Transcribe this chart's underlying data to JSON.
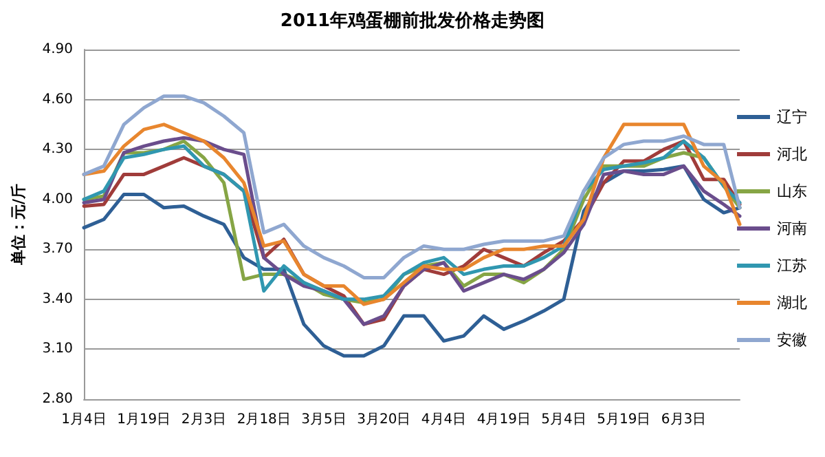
{
  "chart_data": {
    "type": "line",
    "title": "2011年鸡蛋棚前批发价格走势图",
    "ylabel": "单位：元/斤",
    "x": [
      "2011-01-04",
      "2011-01-09",
      "2011-01-14",
      "2011-01-19",
      "2011-01-24",
      "2011-01-29",
      "2011-02-03",
      "2011-02-08",
      "2011-02-13",
      "2011-02-18",
      "2011-02-23",
      "2011-02-28",
      "2011-03-05",
      "2011-03-10",
      "2011-03-15",
      "2011-03-20",
      "2011-03-25",
      "2011-03-30",
      "2011-04-04",
      "2011-04-09",
      "2011-04-14",
      "2011-04-19",
      "2011-04-24",
      "2011-04-29",
      "2011-05-04",
      "2011-05-09",
      "2011-05-14",
      "2011-05-19",
      "2011-05-24",
      "2011-05-29",
      "2011-06-03",
      "2011-06-08",
      "2011-06-13",
      "2011-06-17"
    ],
    "series": [
      {
        "name": "辽宁",
        "color": "#2e5f95",
        "values": [
          3.83,
          3.88,
          4.03,
          4.03,
          3.95,
          3.96,
          3.9,
          3.85,
          3.65,
          3.58,
          3.58,
          3.25,
          3.12,
          3.06,
          3.06,
          3.12,
          3.3,
          3.3,
          3.15,
          3.18,
          3.3,
          3.22,
          3.27,
          3.33,
          3.4,
          3.93,
          4.1,
          4.17,
          4.17,
          4.18,
          4.2,
          4.0,
          3.92,
          3.95
        ]
      },
      {
        "name": "河北",
        "color": "#a03c3a",
        "values": [
          3.96,
          3.97,
          4.15,
          4.15,
          4.2,
          4.25,
          4.2,
          4.15,
          4.05,
          3.65,
          3.76,
          3.55,
          3.48,
          3.42,
          3.25,
          3.28,
          3.48,
          3.58,
          3.55,
          3.6,
          3.7,
          3.65,
          3.6,
          3.68,
          3.75,
          3.88,
          4.1,
          4.23,
          4.23,
          4.3,
          4.35,
          4.12,
          4.12,
          3.97
        ]
      },
      {
        "name": "山东",
        "color": "#86a545",
        "values": [
          4.0,
          4.02,
          4.28,
          4.28,
          4.3,
          4.35,
          4.25,
          4.1,
          3.52,
          3.55,
          3.55,
          3.5,
          3.43,
          3.4,
          3.38,
          3.4,
          3.55,
          3.6,
          3.62,
          3.48,
          3.55,
          3.55,
          3.5,
          3.58,
          3.7,
          4.0,
          4.2,
          4.2,
          4.2,
          4.25,
          4.28,
          4.25,
          4.08,
          3.95
        ]
      },
      {
        "name": "河南",
        "color": "#6a4d8c",
        "values": [
          3.98,
          4.0,
          4.28,
          4.32,
          4.35,
          4.37,
          4.35,
          4.3,
          4.27,
          3.65,
          3.55,
          3.48,
          3.45,
          3.4,
          3.25,
          3.3,
          3.48,
          3.58,
          3.62,
          3.45,
          3.5,
          3.55,
          3.52,
          3.58,
          3.68,
          3.85,
          4.15,
          4.17,
          4.15,
          4.15,
          4.2,
          4.05,
          3.97,
          3.9
        ]
      },
      {
        "name": "江苏",
        "color": "#3097b0",
        "values": [
          4.0,
          4.05,
          4.25,
          4.27,
          4.3,
          4.32,
          4.2,
          4.15,
          4.05,
          3.45,
          3.6,
          3.5,
          3.45,
          3.4,
          3.4,
          3.42,
          3.55,
          3.62,
          3.65,
          3.55,
          3.58,
          3.6,
          3.6,
          3.65,
          3.72,
          4.05,
          4.18,
          4.2,
          4.22,
          4.25,
          4.35,
          4.25,
          4.08,
          3.98
        ]
      },
      {
        "name": "湖北",
        "color": "#e8862e",
        "values": [
          4.15,
          4.17,
          4.32,
          4.42,
          4.45,
          4.4,
          4.35,
          4.25,
          4.1,
          3.72,
          3.75,
          3.55,
          3.48,
          3.48,
          3.37,
          3.4,
          3.5,
          3.6,
          3.58,
          3.58,
          3.65,
          3.7,
          3.7,
          3.72,
          3.72,
          3.88,
          4.25,
          4.45,
          4.45,
          4.45,
          4.45,
          4.2,
          4.1,
          3.85
        ]
      },
      {
        "name": "安徽",
        "color": "#8fa7d0",
        "values": [
          4.15,
          4.2,
          4.45,
          4.55,
          4.62,
          4.62,
          4.58,
          4.5,
          4.4,
          3.8,
          3.85,
          3.72,
          3.65,
          3.6,
          3.53,
          3.53,
          3.65,
          3.72,
          3.7,
          3.7,
          3.73,
          3.75,
          3.75,
          3.75,
          3.78,
          4.05,
          4.25,
          4.33,
          4.35,
          4.35,
          4.38,
          4.33,
          4.33,
          3.95
        ]
      }
    ],
    "xlim": [
      "2011-01-04",
      "2011-06-17"
    ],
    "xticks": [
      {
        "value": "2011-01-04",
        "label": "1月4日"
      },
      {
        "value": "2011-01-19",
        "label": "1月19日"
      },
      {
        "value": "2011-02-03",
        "label": "2月3日"
      },
      {
        "value": "2011-02-18",
        "label": "2月18日"
      },
      {
        "value": "2011-03-05",
        "label": "3月5日"
      },
      {
        "value": "2011-03-20",
        "label": "3月20日"
      },
      {
        "value": "2011-04-04",
        "label": "4月4日"
      },
      {
        "value": "2011-04-19",
        "label": "4月19日"
      },
      {
        "value": "2011-05-04",
        "label": "5月4日"
      },
      {
        "value": "2011-05-19",
        "label": "5月19日"
      },
      {
        "value": "2011-06-03",
        "label": "6月3日"
      }
    ],
    "ylim": [
      2.8,
      4.9
    ],
    "yticks": [
      {
        "value": 2.8,
        "label": "2.80"
      },
      {
        "value": 3.1,
        "label": "3.10"
      },
      {
        "value": 3.4,
        "label": "3.40"
      },
      {
        "value": 3.7,
        "label": "3.70"
      },
      {
        "value": 4.0,
        "label": "4.00"
      },
      {
        "value": 4.3,
        "label": "4.30"
      },
      {
        "value": 4.6,
        "label": "4.60"
      },
      {
        "value": 4.9,
        "label": "4.90"
      }
    ],
    "grid": "y",
    "legend": "right",
    "marker": "none",
    "line_style": "solid"
  }
}
